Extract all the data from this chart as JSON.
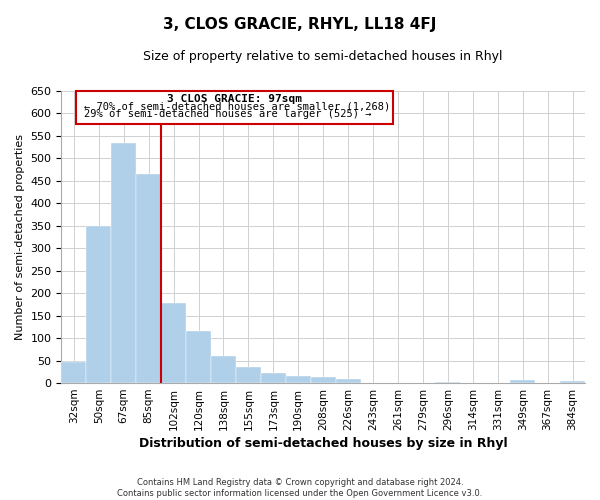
{
  "title": "3, CLOS GRACIE, RHYL, LL18 4FJ",
  "subtitle": "Size of property relative to semi-detached houses in Rhyl",
  "xlabel": "Distribution of semi-detached houses by size in Rhyl",
  "ylabel": "Number of semi-detached properties",
  "bar_labels": [
    "32sqm",
    "50sqm",
    "67sqm",
    "85sqm",
    "102sqm",
    "120sqm",
    "138sqm",
    "155sqm",
    "173sqm",
    "190sqm",
    "208sqm",
    "226sqm",
    "243sqm",
    "261sqm",
    "279sqm",
    "296sqm",
    "314sqm",
    "331sqm",
    "349sqm",
    "367sqm",
    "384sqm"
  ],
  "bar_values": [
    46,
    349,
    534,
    464,
    178,
    115,
    61,
    35,
    22,
    15,
    13,
    8,
    0,
    0,
    0,
    3,
    0,
    0,
    7,
    0,
    4
  ],
  "bar_color": "#b0cfe8",
  "marker_index": 4,
  "marker_label": "3 CLOS GRACIE: 97sqm",
  "annotation_line1": "← 70% of semi-detached houses are smaller (1,268)",
  "annotation_line2": "29% of semi-detached houses are larger (525) →",
  "marker_color": "#cc0000",
  "ylim": [
    0,
    650
  ],
  "yticks": [
    0,
    50,
    100,
    150,
    200,
    250,
    300,
    350,
    400,
    450,
    500,
    550,
    600,
    650
  ],
  "footnote1": "Contains HM Land Registry data © Crown copyright and database right 2024.",
  "footnote2": "Contains public sector information licensed under the Open Government Licence v3.0.",
  "background_color": "#ffffff",
  "grid_color": "#d0d0d0"
}
